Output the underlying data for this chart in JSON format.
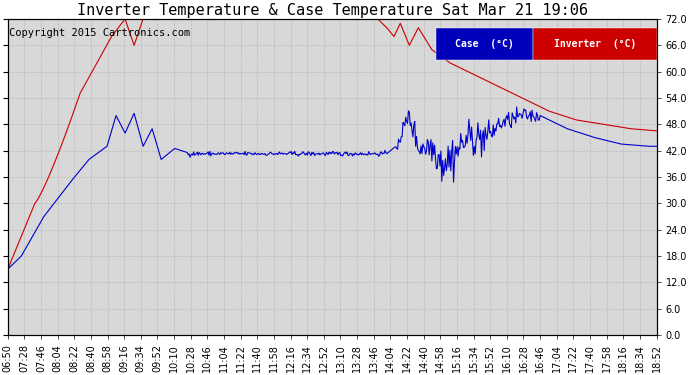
{
  "title": "Inverter Temperature & Case Temperature Sat Mar 21 19:06",
  "copyright": "Copyright 2015 Cartronics.com",
  "ylim": [
    0.0,
    72.0
  ],
  "yticks": [
    0.0,
    6.0,
    12.0,
    18.0,
    24.0,
    30.0,
    36.0,
    42.0,
    48.0,
    54.0,
    60.0,
    66.0,
    72.0
  ],
  "xtick_labels": [
    "06:50",
    "07:28",
    "07:46",
    "08:04",
    "08:22",
    "08:40",
    "08:58",
    "09:16",
    "09:34",
    "09:52",
    "10:10",
    "10:28",
    "10:46",
    "11:04",
    "11:22",
    "11:40",
    "11:58",
    "12:16",
    "12:34",
    "12:52",
    "13:10",
    "13:28",
    "13:46",
    "14:04",
    "14:22",
    "14:40",
    "14:58",
    "15:16",
    "15:34",
    "15:52",
    "16:10",
    "16:28",
    "16:46",
    "17:04",
    "17:22",
    "17:40",
    "17:58",
    "18:16",
    "18:34",
    "18:52"
  ],
  "case_color": "#0000cc",
  "inverter_color": "#cc0000",
  "legend_case_bg": "#0000bb",
  "legend_inverter_bg": "#cc0000",
  "background_color": "#ffffff",
  "plot_bg_color": "#d8d8d8",
  "grid_color": "#bbbbbb",
  "title_fontsize": 11,
  "tick_fontsize": 7,
  "copyright_fontsize": 7.5
}
